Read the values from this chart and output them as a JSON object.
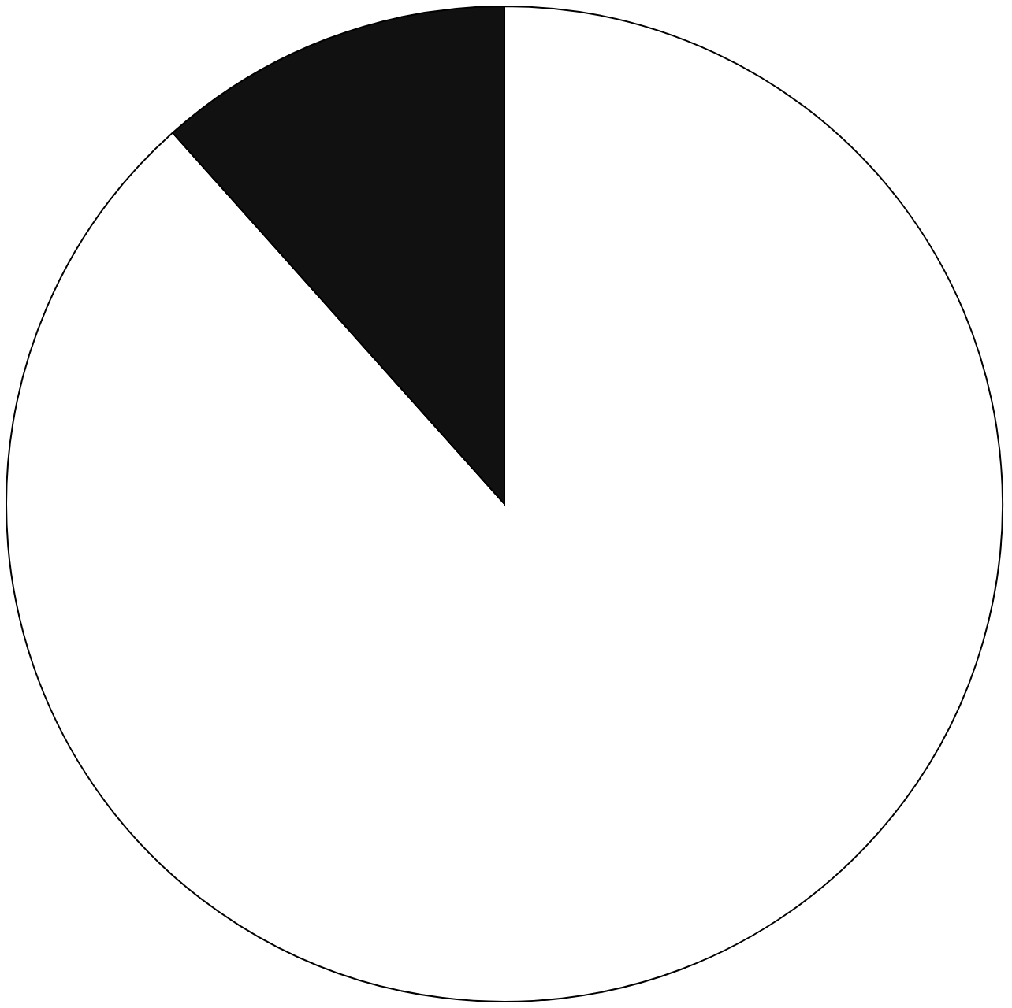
{
  "chart_data": {
    "type": "pie",
    "categories": [
      null,
      null
    ],
    "values": [
      88.4,
      11.6
    ],
    "colors": [
      "#ffffff",
      "#111111"
    ]
  }
}
